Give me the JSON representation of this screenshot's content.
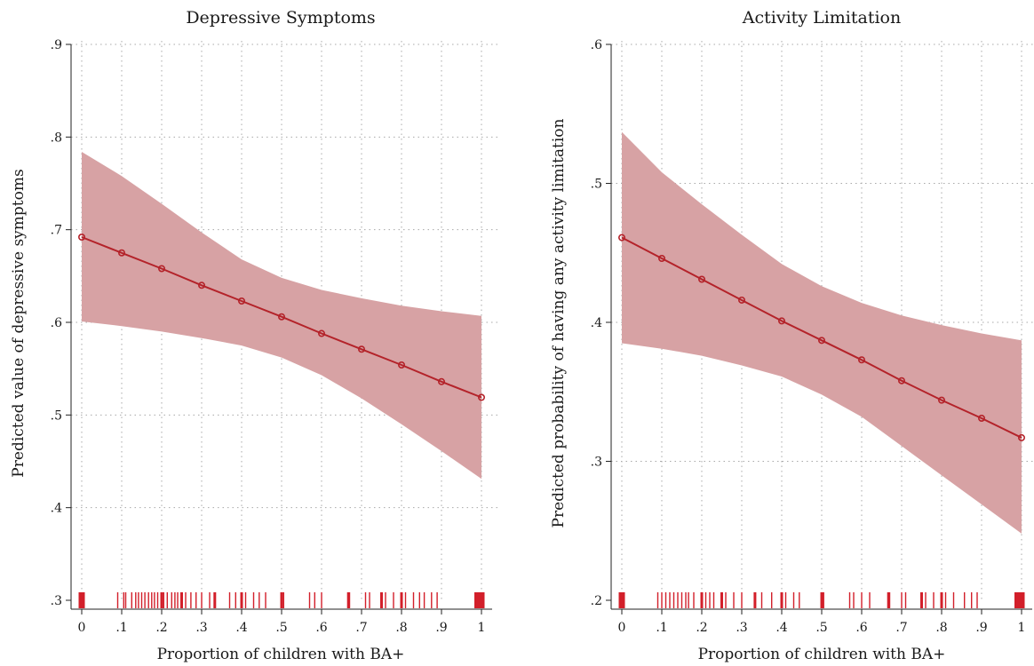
{
  "chart_data": [
    {
      "type": "line",
      "title": "Depressive Symptoms",
      "xlabel": "Proportion of children with BA+",
      "ylabel": "Predicted value of depressive symptoms",
      "xlim": [
        0,
        1
      ],
      "ylim": [
        0.3,
        0.9
      ],
      "x_ticks": [
        0,
        0.1,
        0.2,
        0.3,
        0.4,
        0.5,
        0.6,
        0.7,
        0.8,
        0.9,
        1
      ],
      "x_tick_labels": [
        "0",
        ".1",
        ".2",
        ".3",
        ".4",
        ".5",
        ".6",
        ".7",
        ".8",
        ".9",
        "1"
      ],
      "y_ticks": [
        0.3,
        0.4,
        0.5,
        0.6,
        0.7,
        0.8,
        0.9
      ],
      "y_tick_labels": [
        ".3",
        ".4",
        ".5",
        ".6",
        ".7",
        ".8",
        ".9"
      ],
      "grid": true,
      "x": [
        0,
        0.1,
        0.2,
        0.3,
        0.4,
        0.5,
        0.6,
        0.7,
        0.8,
        0.9,
        1
      ],
      "series": [
        {
          "values": [
            0.692,
            0.675,
            0.658,
            0.64,
            0.623,
            0.606,
            0.588,
            0.571,
            0.554,
            0.536,
            0.519
          ],
          "ci_upper": [
            0.784,
            0.758,
            0.728,
            0.697,
            0.668,
            0.648,
            0.635,
            0.626,
            0.618,
            0.612,
            0.607
          ],
          "ci_lower": [
            0.601,
            0.596,
            0.59,
            0.583,
            0.575,
            0.562,
            0.543,
            0.518,
            0.49,
            0.461,
            0.431
          ]
        }
      ],
      "rug_x": [
        0,
        0.005,
        0.09,
        0.105,
        0.11,
        0.125,
        0.135,
        0.142,
        0.15,
        0.158,
        0.167,
        0.175,
        0.182,
        0.19,
        0.2,
        0.205,
        0.214,
        0.225,
        0.233,
        0.24,
        0.25,
        0.26,
        0.273,
        0.286,
        0.3,
        0.32,
        0.333,
        0.37,
        0.385,
        0.4,
        0.41,
        0.43,
        0.444,
        0.46,
        0.5,
        0.505,
        0.57,
        0.583,
        0.6,
        0.667,
        0.67,
        0.71,
        0.72,
        0.75,
        0.76,
        0.78,
        0.8,
        0.81,
        0.83,
        0.845,
        0.857,
        0.875,
        0.889,
        1,
        0.995,
        0.99
      ]
    },
    {
      "type": "line",
      "title": "Activity Limitation",
      "xlabel": "Proportion of children with BA+",
      "ylabel": "Predicted probability of having any activity limitation",
      "xlim": [
        0,
        1
      ],
      "ylim": [
        0.2,
        0.6
      ],
      "x_ticks": [
        0,
        0.1,
        0.2,
        0.3,
        0.4,
        0.5,
        0.6,
        0.7,
        0.8,
        0.9,
        1
      ],
      "x_tick_labels": [
        "0",
        ".1",
        ".2",
        ".3",
        ".4",
        ".5",
        ".6",
        ".7",
        ".8",
        ".9",
        "1"
      ],
      "y_ticks": [
        0.2,
        0.3,
        0.4,
        0.5,
        0.6
      ],
      "y_tick_labels": [
        ".2",
        ".3",
        ".4",
        ".5",
        ".6"
      ],
      "grid": true,
      "x": [
        0,
        0.1,
        0.2,
        0.3,
        0.4,
        0.5,
        0.6,
        0.7,
        0.8,
        0.9,
        1
      ],
      "series": [
        {
          "values": [
            0.461,
            0.446,
            0.431,
            0.416,
            0.401,
            0.387,
            0.373,
            0.358,
            0.344,
            0.331,
            0.317
          ],
          "ci_upper": [
            0.537,
            0.508,
            0.485,
            0.463,
            0.442,
            0.426,
            0.414,
            0.405,
            0.398,
            0.392,
            0.387
          ],
          "ci_lower": [
            0.385,
            0.381,
            0.376,
            0.369,
            0.361,
            0.348,
            0.332,
            0.311,
            0.29,
            0.269,
            0.248
          ]
        }
      ],
      "rug_x": [
        0,
        0.005,
        0.09,
        0.1,
        0.11,
        0.12,
        0.13,
        0.14,
        0.15,
        0.16,
        0.167,
        0.18,
        0.2,
        0.21,
        0.22,
        0.23,
        0.25,
        0.26,
        0.28,
        0.3,
        0.333,
        0.35,
        0.375,
        0.4,
        0.41,
        0.43,
        0.444,
        0.5,
        0.505,
        0.57,
        0.58,
        0.6,
        0.62,
        0.667,
        0.67,
        0.7,
        0.71,
        0.75,
        0.76,
        0.78,
        0.8,
        0.81,
        0.83,
        0.857,
        0.875,
        0.889,
        1,
        0.995,
        0.99
      ]
    }
  ],
  "colors": {
    "band": "#d7a2a4",
    "line": "#b4232a",
    "rug": "#d21f2a",
    "grid": "#a8a8a8"
  }
}
